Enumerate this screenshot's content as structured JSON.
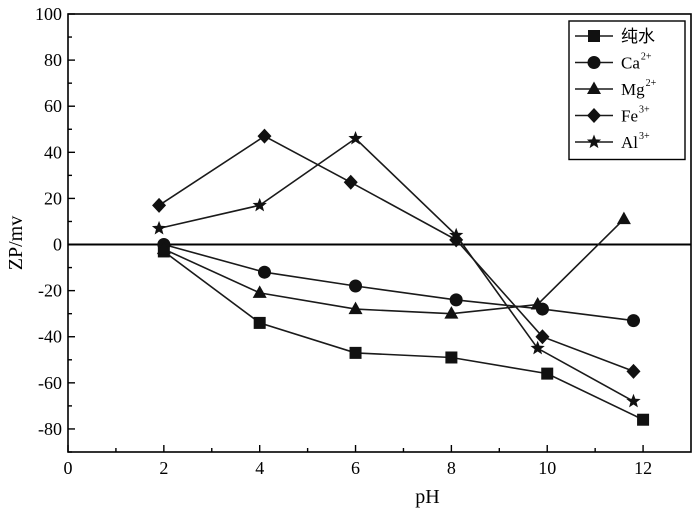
{
  "chart_data": {
    "type": "line",
    "xlabel": "pH",
    "ylabel": "ZP/mv",
    "xlim": [
      0,
      13
    ],
    "ylim": [
      -90,
      100
    ],
    "xticks": [
      0,
      2,
      4,
      6,
      8,
      10,
      12
    ],
    "yticks": [
      -80,
      -60,
      -40,
      -20,
      0,
      20,
      40,
      60,
      80,
      100
    ],
    "zero_line": true,
    "grid": false,
    "legend_position": "top-right",
    "series": [
      {
        "name": "纯水",
        "sup": "",
        "marker": "square",
        "x": [
          2.0,
          4.0,
          6.0,
          8.0,
          10.0,
          12.0
        ],
        "y": [
          -3,
          -34,
          -47,
          -49,
          -56,
          -76
        ]
      },
      {
        "name": "Ca",
        "sup": "2+",
        "marker": "circle",
        "x": [
          2.0,
          4.1,
          6.0,
          8.1,
          9.9,
          11.8
        ],
        "y": [
          0,
          -12,
          -18,
          -24,
          -28,
          -33
        ]
      },
      {
        "name": "Mg",
        "sup": "2+",
        "marker": "triangle",
        "x": [
          2.0,
          4.0,
          6.0,
          8.0,
          9.8,
          11.6
        ],
        "y": [
          -2,
          -21,
          -28,
          -30,
          -26,
          11
        ]
      },
      {
        "name": "Fe",
        "sup": "3+",
        "marker": "diamond",
        "x": [
          1.9,
          4.1,
          5.9,
          8.1,
          9.9,
          11.8
        ],
        "y": [
          17,
          47,
          27,
          2,
          -40,
          -55
        ]
      },
      {
        "name": "Al",
        "sup": "3+",
        "marker": "star",
        "x": [
          1.9,
          4.0,
          6.0,
          8.1,
          9.8,
          11.8
        ],
        "y": [
          7,
          17,
          46,
          4,
          -45,
          -68
        ]
      }
    ]
  }
}
